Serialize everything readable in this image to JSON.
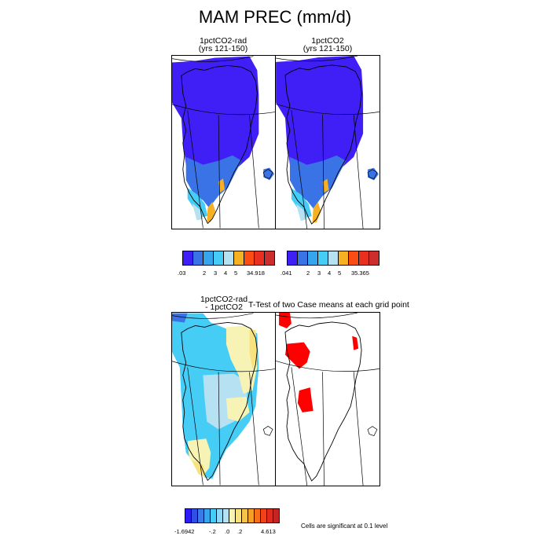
{
  "title": "MAM PREC (mm/d)",
  "panels": {
    "p1": {
      "line1": "1pctCO2-rad",
      "line2": "(yrs 121-150)"
    },
    "p2": {
      "line1": "1pctCO2",
      "line2": "(yrs 121-150)"
    },
    "p3": {
      "line1": "1pctCO2-rad",
      "line2": "- 1pctCO2"
    },
    "p4": {
      "line1": "T-Test of two Case means at each grid point"
    }
  },
  "legend1": {
    "colors": [
      "#3f1ff5",
      "#3a73e6",
      "#35a6ee",
      "#46cdf6",
      "#b6e1f2",
      "#f5b122",
      "#fb4c14",
      "#e92f1f",
      "#cc2e2e"
    ],
    "ticks": [
      ".03",
      "2",
      "3",
      "4",
      "5",
      "34.918"
    ]
  },
  "legend2": {
    "colors": [
      "#3f1ff5",
      "#3a73e6",
      "#35a6ee",
      "#46cdf6",
      "#b6e1f2",
      "#f5b122",
      "#fb4c14",
      "#e92f1f",
      "#cc2e2e"
    ],
    "ticks": [
      ".041",
      "2",
      "3",
      "4",
      "5",
      "35.365"
    ]
  },
  "legend3": {
    "colors": [
      "#2b1df3",
      "#2f4fe6",
      "#3a7ae9",
      "#35a6ee",
      "#46cdf6",
      "#8fd8f5",
      "#b6e1f2",
      "#f6f3b5",
      "#f8e27e",
      "#f5c54a",
      "#f5a024",
      "#f76f1a",
      "#f2421c",
      "#e02a20",
      "#c52424"
    ],
    "ticks": [
      "-1.6942",
      "-.2",
      ".0",
      ".2",
      "4.613"
    ]
  },
  "significance_note": "Cells are significant at 0.1 level",
  "map_colors": {
    "deep": "#3f1ff5",
    "mid": "#3a73e6",
    "light": "#46cdf6",
    "pale": "#b6e1f2",
    "orange": "#f5b122",
    "yellow": "#f8e27e",
    "pale_yellow": "#f6f3b5",
    "red": "#ff0000"
  }
}
